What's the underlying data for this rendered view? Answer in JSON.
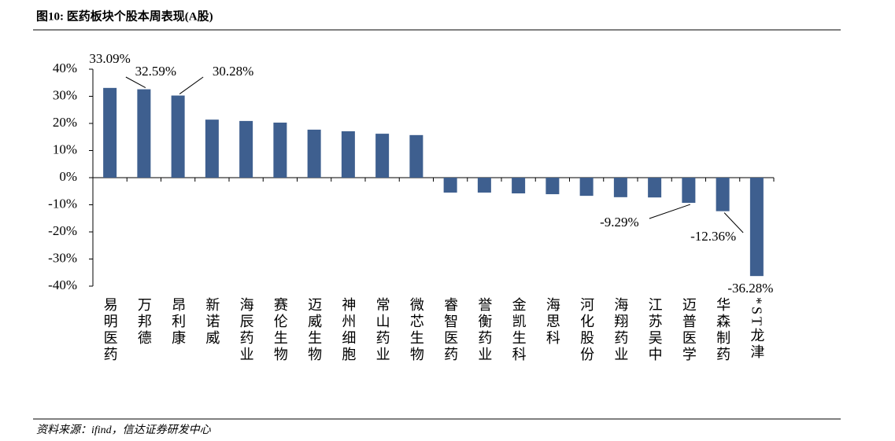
{
  "title": "图10: 医药板块个股本周表现(A股)",
  "source": "资料来源：ifind，信达证券研发中心",
  "chart_data": {
    "type": "bar",
    "categories": [
      "易明医药",
      "万邦德",
      "昂利康",
      "新诺威",
      "海辰药业",
      "赛伦生物",
      "迈威生物",
      "神州细胞",
      "常山药业",
      "微芯生物",
      "睿智医药",
      "誉衡药业",
      "金凯生科",
      "海思科",
      "河化股份",
      "海翔药业",
      "江苏吴中",
      "迈普医学",
      "华森制药",
      "*ST龙津"
    ],
    "values": [
      33.09,
      32.59,
      30.28,
      21.4,
      20.9,
      20.3,
      17.7,
      17.1,
      16.2,
      15.7,
      -5.5,
      -5.5,
      -5.8,
      -6.1,
      -6.7,
      -7.2,
      -7.3,
      -9.29,
      -12.36,
      -36.28
    ],
    "value_labels": [
      "33.09%",
      "32.59%",
      "30.28%",
      null,
      null,
      null,
      null,
      null,
      null,
      null,
      null,
      null,
      null,
      null,
      null,
      null,
      null,
      "-9.29%",
      "-12.36%",
      "-36.28%"
    ],
    "color": "#3e5f8f",
    "ylim": [
      -40,
      40
    ],
    "yticks": [
      {
        "value": -40,
        "label": "-40%"
      },
      {
        "value": -30,
        "label": "-30%"
      },
      {
        "value": -20,
        "label": "-20%"
      },
      {
        "value": -10,
        "label": "-10%"
      },
      {
        "value": 0,
        "label": "0%"
      },
      {
        "value": 10,
        "label": "10%"
      },
      {
        "value": 20,
        "label": "20%"
      },
      {
        "value": 30,
        "label": "30%"
      },
      {
        "value": 40,
        "label": "40%"
      }
    ]
  }
}
